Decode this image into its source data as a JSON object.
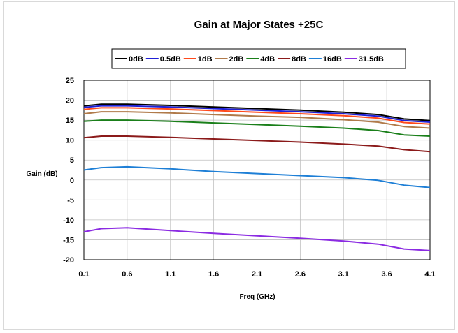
{
  "chart_data": {
    "type": "line",
    "title": "Gain at Major States +25C",
    "xlabel": "Freq (GHz)",
    "ylabel": "Gain (dB)",
    "xlim": [
      0.1,
      4.1
    ],
    "ylim": [
      -20,
      25
    ],
    "xticks": [
      0.1,
      0.6,
      1.1,
      1.6,
      2.1,
      2.6,
      3.1,
      3.6,
      4.1
    ],
    "yticks": [
      -20,
      -15,
      -10,
      -5,
      0,
      5,
      10,
      15,
      20,
      25
    ],
    "grid": true,
    "legend_position": "top",
    "x": [
      0.1,
      0.3,
      0.6,
      1.1,
      1.6,
      2.1,
      2.6,
      3.1,
      3.5,
      3.8,
      4.1
    ],
    "series": [
      {
        "name": "0dB",
        "color": "#000000",
        "values": [
          18.6,
          19.0,
          19.0,
          18.7,
          18.3,
          17.9,
          17.5,
          17.0,
          16.4,
          15.3,
          14.9
        ]
      },
      {
        "name": "0.5dB",
        "color": "#1f1fd6",
        "values": [
          18.2,
          18.6,
          18.6,
          18.3,
          17.9,
          17.5,
          17.1,
          16.6,
          16.0,
          14.9,
          14.5
        ]
      },
      {
        "name": "1dB",
        "color": "#ff4a1c",
        "values": [
          17.7,
          18.1,
          18.1,
          17.8,
          17.4,
          17.0,
          16.6,
          16.1,
          15.5,
          14.4,
          14.0
        ]
      },
      {
        "name": "2dB",
        "color": "#b07a4a",
        "values": [
          16.6,
          17.1,
          17.1,
          16.8,
          16.4,
          16.0,
          15.7,
          15.1,
          14.5,
          13.4,
          13.0
        ]
      },
      {
        "name": "4dB",
        "color": "#1a7f1a",
        "values": [
          14.7,
          15.0,
          15.0,
          14.7,
          14.3,
          13.9,
          13.5,
          13.0,
          12.4,
          11.3,
          11.0
        ]
      },
      {
        "name": "8dB",
        "color": "#8b1a1a",
        "values": [
          10.6,
          11.0,
          11.0,
          10.7,
          10.3,
          9.9,
          9.5,
          9.0,
          8.5,
          7.6,
          7.1
        ]
      },
      {
        "name": "16dB",
        "color": "#1e7fd6",
        "values": [
          2.5,
          3.1,
          3.3,
          2.8,
          2.1,
          1.6,
          1.1,
          0.6,
          -0.1,
          -1.3,
          -1.9
        ]
      },
      {
        "name": "31.5dB",
        "color": "#8b2be2",
        "values": [
          -13.0,
          -12.2,
          -12.0,
          -12.7,
          -13.4,
          -14.0,
          -14.6,
          -15.3,
          -16.1,
          -17.3,
          -17.7
        ]
      }
    ]
  }
}
